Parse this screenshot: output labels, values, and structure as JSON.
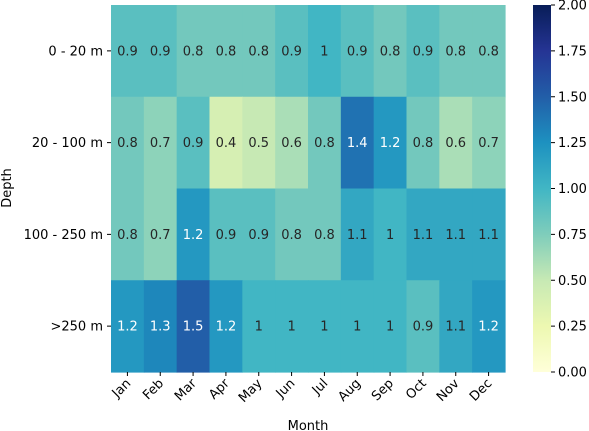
{
  "chart_data": {
    "type": "heatmap",
    "title": "",
    "xlabel": "Month",
    "ylabel": "Depth",
    "x_categories": [
      "Jan",
      "Feb",
      "Mar",
      "Apr",
      "May",
      "Jun",
      "Jul",
      "Aug",
      "Sep",
      "Oct",
      "Nov",
      "Dec"
    ],
    "y_categories": [
      "0 - 20 m",
      "20 - 100 m",
      "100 - 250 m",
      ">250 m"
    ],
    "values": [
      [
        0.9,
        0.9,
        0.8,
        0.8,
        0.8,
        0.9,
        1.0,
        0.9,
        0.8,
        0.9,
        0.8,
        0.8
      ],
      [
        0.8,
        0.7,
        0.9,
        0.4,
        0.5,
        0.6,
        0.8,
        1.4,
        1.2,
        0.8,
        0.6,
        0.7
      ],
      [
        0.8,
        0.7,
        1.2,
        0.9,
        0.9,
        0.8,
        0.8,
        1.1,
        1.0,
        1.1,
        1.1,
        1.1
      ],
      [
        1.2,
        1.3,
        1.5,
        1.2,
        1.0,
        1.0,
        1.0,
        1.0,
        1.0,
        0.9,
        1.1,
        1.2
      ]
    ],
    "labels": [
      [
        "0.9",
        "0.9",
        "0.8",
        "0.8",
        "0.8",
        "0.9",
        "1",
        "0.9",
        "0.8",
        "0.9",
        "0.8",
        "0.8"
      ],
      [
        "0.8",
        "0.7",
        "0.9",
        "0.4",
        "0.5",
        "0.6",
        "0.8",
        "1.4",
        "1.2",
        "0.8",
        "0.6",
        "0.7"
      ],
      [
        "0.8",
        "0.7",
        "1.2",
        "0.9",
        "0.9",
        "0.8",
        "0.8",
        "1.1",
        "1",
        "1.1",
        "1.1",
        "1.1"
      ],
      [
        "1.2",
        "1.3",
        "1.5",
        "1.2",
        "1",
        "1",
        "1",
        "1",
        "1",
        "0.9",
        "1.1",
        "1.2"
      ]
    ],
    "colormap": "YlGnBu",
    "vmin": 0.0,
    "vmax": 2.0,
    "colorbar_ticks": [
      "0.00",
      "0.25",
      "0.50",
      "0.75",
      "1.00",
      "1.25",
      "1.50",
      "1.75",
      "2.00"
    ],
    "annotations": true,
    "grid": false
  }
}
